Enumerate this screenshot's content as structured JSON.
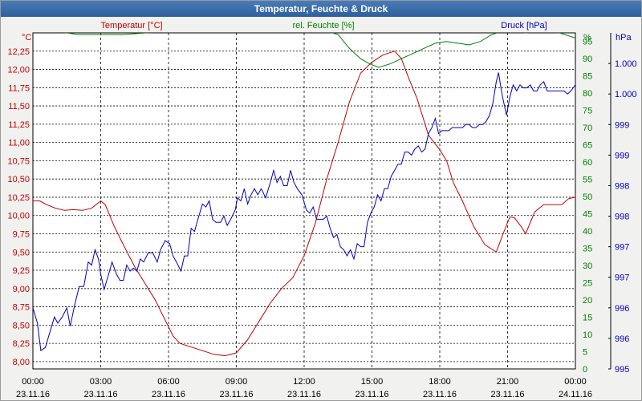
{
  "window": {
    "title": "Temperatur, Feuchte & Druck"
  },
  "colors": {
    "temperature": "#c00000",
    "humidity": "#008000",
    "pressure": "#0000c0",
    "grid": "#000000",
    "text": "#000000",
    "plot_bg": "#ffffff"
  },
  "chart_data": {
    "type": "line",
    "title": "Temperatur, Feuchte & Druck",
    "grid": true,
    "x_ticks": [
      {
        "time": "00:00",
        "date": "23.11.16"
      },
      {
        "time": "03:00",
        "date": "23.11.16"
      },
      {
        "time": "06:00",
        "date": "23.11.16"
      },
      {
        "time": "09:00",
        "date": "23.11.16"
      },
      {
        "time": "12:00",
        "date": "23.11.16"
      },
      {
        "time": "15:00",
        "date": "23.11.16"
      },
      {
        "time": "18:00",
        "date": "23.11.16"
      },
      {
        "time": "21:00",
        "date": "23.11.16"
      },
      {
        "time": "00:00",
        "date": "24.11.16"
      }
    ],
    "x_range_hours": [
      0,
      24
    ],
    "axes": {
      "temperature": {
        "label": "Temperatur [°C]",
        "unit": "°C",
        "ylim": [
          7.9,
          12.5
        ],
        "ticks": [
          "8,00",
          "8,25",
          "8,50",
          "8,75",
          "9,00",
          "9,25",
          "9,50",
          "9,75",
          "10,00",
          "10,25",
          "10,50",
          "10,75",
          "11,00",
          "11,25",
          "11,50",
          "11,75",
          "12,00",
          "12,25"
        ]
      },
      "humidity": {
        "label": "rel. Feuchte [%]",
        "unit": "%",
        "ylim": [
          0,
          97.5
        ],
        "ticks": [
          "0",
          "5",
          "10",
          "15",
          "20",
          "25",
          "30",
          "35",
          "40",
          "45",
          "50",
          "55",
          "60",
          "65",
          "70",
          "75",
          "80",
          "85",
          "90",
          "95"
        ]
      },
      "pressure": {
        "label": "Druck [hPa]",
        "unit": "hPa",
        "ylim": [
          995,
          1000.5
        ],
        "ticks": [
          {
            "value": 995,
            "label": "995"
          },
          {
            "value": 995.5,
            "label": "996"
          },
          {
            "value": 996,
            "label": "996"
          },
          {
            "value": 996.5,
            "label": "997"
          },
          {
            "value": 997,
            "label": "997"
          },
          {
            "value": 997.5,
            "label": "998"
          },
          {
            "value": 998,
            "label": "998"
          },
          {
            "value": 998.5,
            "label": "999"
          },
          {
            "value": 999,
            "label": "999"
          },
          {
            "value": 999.5,
            "label": "1.000"
          },
          {
            "value": 1000,
            "label": "1.000"
          }
        ]
      }
    },
    "series": [
      {
        "name": "Temperatur [°C]",
        "axis": "temperature",
        "points": [
          [
            0,
            10.2
          ],
          [
            0.3,
            10.2
          ],
          [
            0.6,
            10.15
          ],
          [
            1.0,
            10.1
          ],
          [
            1.4,
            10.07
          ],
          [
            1.8,
            10.08
          ],
          [
            2.2,
            10.07
          ],
          [
            2.6,
            10.1
          ],
          [
            3.0,
            10.2
          ],
          [
            3.2,
            10.15
          ],
          [
            3.6,
            9.85
          ],
          [
            4.0,
            9.6
          ],
          [
            4.5,
            9.3
          ],
          [
            5.0,
            9.05
          ],
          [
            5.4,
            8.85
          ],
          [
            5.8,
            8.6
          ],
          [
            6.2,
            8.35
          ],
          [
            6.5,
            8.25
          ],
          [
            7.0,
            8.2
          ],
          [
            7.5,
            8.15
          ],
          [
            8.0,
            8.1
          ],
          [
            8.5,
            8.08
          ],
          [
            9.0,
            8.12
          ],
          [
            9.5,
            8.3
          ],
          [
            10.0,
            8.55
          ],
          [
            10.5,
            8.8
          ],
          [
            11.0,
            9.0
          ],
          [
            11.5,
            9.15
          ],
          [
            12.0,
            9.45
          ],
          [
            12.5,
            9.9
          ],
          [
            13.0,
            10.5
          ],
          [
            13.5,
            11.0
          ],
          [
            14.0,
            11.55
          ],
          [
            14.5,
            11.95
          ],
          [
            15.0,
            12.1
          ],
          [
            15.5,
            12.2
          ],
          [
            16.0,
            12.25
          ],
          [
            16.3,
            12.15
          ],
          [
            16.6,
            11.9
          ],
          [
            17.0,
            11.6
          ],
          [
            17.5,
            11.1
          ],
          [
            18.0,
            10.9
          ],
          [
            18.3,
            10.75
          ],
          [
            18.6,
            10.45
          ],
          [
            19.0,
            10.2
          ],
          [
            19.5,
            9.85
          ],
          [
            20.0,
            9.6
          ],
          [
            20.5,
            9.5
          ],
          [
            20.8,
            9.75
          ],
          [
            21.1,
            9.98
          ],
          [
            21.3,
            9.97
          ],
          [
            21.6,
            9.85
          ],
          [
            21.8,
            9.75
          ],
          [
            22.2,
            10.05
          ],
          [
            22.6,
            10.15
          ],
          [
            23.0,
            10.15
          ],
          [
            23.4,
            10.15
          ],
          [
            23.7,
            10.23
          ],
          [
            24.0,
            10.25
          ]
        ]
      },
      {
        "name": "rel. Feuchte [%]",
        "axis": "humidity",
        "points": [
          [
            0,
            98
          ],
          [
            1,
            98
          ],
          [
            2,
            97
          ],
          [
            3,
            97
          ],
          [
            4,
            97
          ],
          [
            5,
            97.5
          ],
          [
            6,
            98
          ],
          [
            7,
            98
          ],
          [
            8,
            98
          ],
          [
            9,
            98
          ],
          [
            10,
            98
          ],
          [
            11,
            98
          ],
          [
            12,
            98
          ],
          [
            13,
            98
          ],
          [
            13.5,
            97
          ],
          [
            14.0,
            93
          ],
          [
            14.5,
            90
          ],
          [
            14.9,
            88.5
          ],
          [
            15.3,
            87.5
          ],
          [
            15.8,
            88.5
          ],
          [
            16.3,
            90
          ],
          [
            16.8,
            91.5
          ],
          [
            17.3,
            93
          ],
          [
            17.8,
            94.5
          ],
          [
            18.3,
            95
          ],
          [
            18.8,
            94.5
          ],
          [
            19.3,
            94
          ],
          [
            19.8,
            95
          ],
          [
            20.3,
            97
          ],
          [
            20.8,
            98
          ],
          [
            21.3,
            98
          ],
          [
            21.8,
            97.5
          ],
          [
            22.3,
            98
          ],
          [
            22.8,
            98
          ],
          [
            23.3,
            97.5
          ],
          [
            24.0,
            96
          ]
        ]
      },
      {
        "name": "Druck [hPa]",
        "axis": "pressure",
        "points": [
          [
            0,
            996
          ],
          [
            0.2,
            995.75
          ],
          [
            0.35,
            995.3
          ],
          [
            0.55,
            995.35
          ],
          [
            0.75,
            995.6
          ],
          [
            0.95,
            995.85
          ],
          [
            1.1,
            995.75
          ],
          [
            1.3,
            995.85
          ],
          [
            1.5,
            996
          ],
          [
            1.65,
            995.7
          ],
          [
            1.85,
            996.05
          ],
          [
            2.05,
            996.35
          ],
          [
            2.25,
            996.35
          ],
          [
            2.45,
            996.75
          ],
          [
            2.6,
            996.7
          ],
          [
            2.75,
            996.95
          ],
          [
            2.9,
            996.8
          ],
          [
            3.0,
            996.55
          ],
          [
            3.15,
            996.3
          ],
          [
            3.35,
            996.55
          ],
          [
            3.5,
            996.75
          ],
          [
            3.7,
            996.55
          ],
          [
            3.85,
            996.45
          ],
          [
            4.0,
            996.45
          ],
          [
            4.15,
            996.7
          ],
          [
            4.3,
            996.6
          ],
          [
            4.45,
            996.65
          ],
          [
            4.6,
            996.6
          ],
          [
            4.75,
            996.8
          ],
          [
            4.9,
            996.75
          ],
          [
            5.1,
            996.9
          ],
          [
            5.3,
            996.9
          ],
          [
            5.5,
            996.75
          ],
          [
            5.65,
            996.95
          ],
          [
            5.85,
            997.1
          ],
          [
            6.05,
            997.05
          ],
          [
            6.2,
            996.85
          ],
          [
            6.35,
            996.75
          ],
          [
            6.55,
            996.6
          ],
          [
            6.7,
            996.85
          ],
          [
            6.85,
            996.85
          ],
          [
            7.0,
            997.3
          ],
          [
            7.15,
            997.25
          ],
          [
            7.3,
            997.45
          ],
          [
            7.5,
            997.7
          ],
          [
            7.65,
            997.65
          ],
          [
            7.8,
            997.75
          ],
          [
            7.95,
            997.45
          ],
          [
            8.1,
            997.4
          ],
          [
            8.3,
            997.4
          ],
          [
            8.45,
            997.5
          ],
          [
            8.6,
            997.35
          ],
          [
            8.75,
            997.45
          ],
          [
            8.95,
            997.6
          ],
          [
            9.05,
            997.8
          ],
          [
            9.2,
            997.75
          ],
          [
            9.35,
            997.95
          ],
          [
            9.5,
            997.7
          ],
          [
            9.65,
            997.85
          ],
          [
            9.8,
            997.95
          ],
          [
            9.95,
            997.85
          ],
          [
            10.1,
            997.95
          ],
          [
            10.3,
            997.8
          ],
          [
            10.5,
            998.05
          ],
          [
            10.65,
            998.25
          ],
          [
            10.8,
            998.05
          ],
          [
            10.95,
            998.15
          ],
          [
            11.1,
            998.0
          ],
          [
            11.25,
            998.0
          ],
          [
            11.4,
            998.25
          ],
          [
            11.55,
            998.05
          ],
          [
            11.7,
            997.95
          ],
          [
            11.9,
            997.85
          ],
          [
            12.1,
            997.6
          ],
          [
            12.25,
            997.55
          ],
          [
            12.4,
            997.65
          ],
          [
            12.55,
            997.45
          ],
          [
            12.7,
            997.45
          ],
          [
            12.85,
            997.45
          ],
          [
            13.0,
            997.5
          ],
          [
            13.15,
            997.3
          ],
          [
            13.3,
            997.15
          ],
          [
            13.45,
            997.2
          ],
          [
            13.6,
            997
          ],
          [
            13.75,
            996.95
          ],
          [
            13.9,
            996.85
          ],
          [
            14.05,
            996.95
          ],
          [
            14.2,
            996.8
          ],
          [
            14.35,
            997.05
          ],
          [
            14.5,
            997.0
          ],
          [
            14.65,
            997.0
          ],
          [
            14.8,
            997.4
          ],
          [
            14.95,
            997.55
          ],
          [
            15.1,
            997.65
          ],
          [
            15.25,
            997.85
          ],
          [
            15.4,
            997.75
          ],
          [
            15.55,
            997.95
          ],
          [
            15.7,
            997.95
          ],
          [
            15.85,
            998.15
          ],
          [
            16.0,
            998.25
          ],
          [
            16.15,
            998.35
          ],
          [
            16.3,
            998.35
          ],
          [
            16.45,
            998.55
          ],
          [
            16.6,
            998.55
          ],
          [
            16.75,
            998.5
          ],
          [
            16.9,
            998.6
          ],
          [
            17.05,
            998.65
          ],
          [
            17.2,
            998.55
          ],
          [
            17.35,
            998.6
          ],
          [
            17.5,
            998.85
          ],
          [
            17.65,
            998.95
          ],
          [
            17.8,
            999.1
          ],
          [
            17.95,
            998.85
          ],
          [
            18.1,
            998.9
          ],
          [
            18.25,
            998.9
          ],
          [
            18.4,
            998.9
          ],
          [
            18.55,
            998.95
          ],
          [
            18.7,
            998.95
          ],
          [
            18.85,
            998.95
          ],
          [
            19.0,
            998.95
          ],
          [
            19.15,
            999.0
          ],
          [
            19.3,
            999.0
          ],
          [
            19.45,
            998.95
          ],
          [
            19.6,
            998.95
          ],
          [
            19.75,
            999.0
          ],
          [
            19.9,
            999.0
          ],
          [
            20.05,
            999.05
          ],
          [
            20.2,
            999.15
          ],
          [
            20.35,
            999.35
          ],
          [
            20.5,
            999.7
          ],
          [
            20.6,
            999.85
          ],
          [
            20.75,
            999.5
          ],
          [
            20.95,
            999.15
          ],
          [
            21.1,
            999.45
          ],
          [
            21.25,
            999.65
          ],
          [
            21.4,
            999.55
          ],
          [
            21.55,
            999.65
          ],
          [
            21.7,
            999.6
          ],
          [
            21.85,
            999.6
          ],
          [
            22.0,
            999.65
          ],
          [
            22.15,
            999.55
          ],
          [
            22.3,
            999.55
          ],
          [
            22.45,
            999.65
          ],
          [
            22.6,
            999.7
          ],
          [
            22.75,
            999.55
          ],
          [
            22.9,
            999.55
          ],
          [
            23.05,
            999.55
          ],
          [
            23.2,
            999.55
          ],
          [
            23.35,
            999.55
          ],
          [
            23.5,
            999.55
          ],
          [
            23.65,
            999.5
          ],
          [
            23.8,
            999.55
          ],
          [
            24.0,
            999.65
          ]
        ]
      }
    ]
  }
}
